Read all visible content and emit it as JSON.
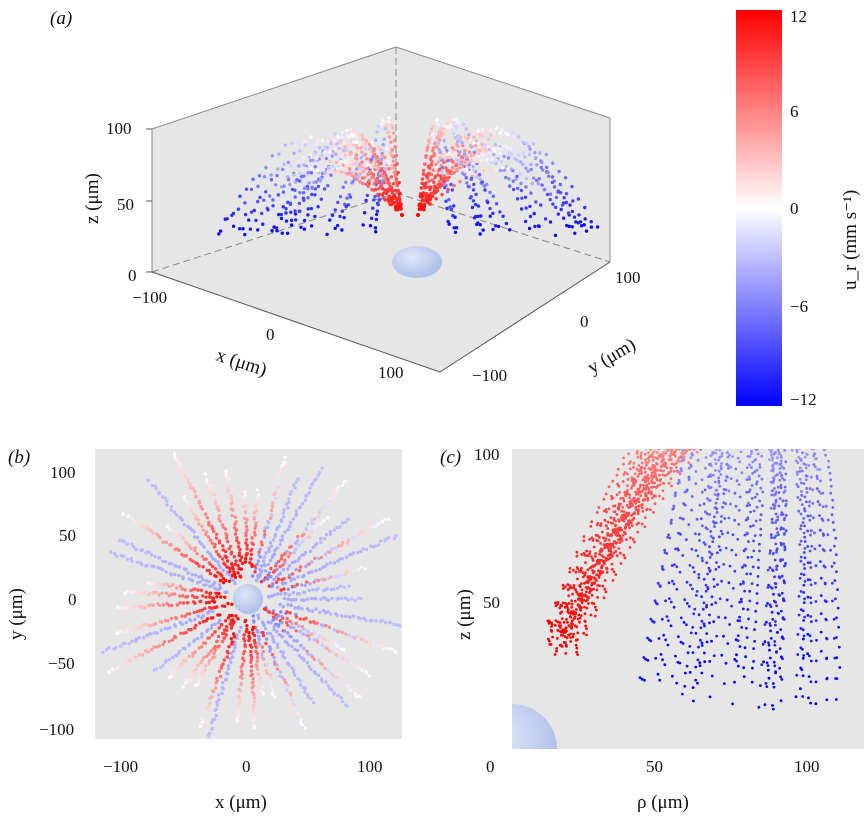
{
  "figure": {
    "panels": [
      {
        "id": "a",
        "label": "(a)"
      },
      {
        "id": "b",
        "label": "(b)"
      },
      {
        "id": "c",
        "label": "(c)"
      }
    ],
    "colorbar": {
      "label": "u_r (mm s⁻¹)",
      "ticks": [
        "12",
        "6",
        "0",
        "−6",
        "−12"
      ],
      "tick_values": [
        12,
        6,
        0,
        -6,
        -12
      ],
      "range": [
        -12,
        12
      ],
      "colormap": {
        "low": "#0000ff",
        "mid": "#ffffff",
        "high": "#ff0000"
      }
    },
    "colors": {
      "background_panel": "#e6e6e6",
      "sphere": "#b9c8ec"
    }
  },
  "chart_data": [
    {
      "panel": "a",
      "type": "scatter",
      "projection": "3d",
      "xlabel": "x (μm)",
      "ylabel": "y (μm)",
      "zlabel": "z (μm)",
      "x_ticks": [
        "−100",
        "0",
        "100"
      ],
      "y_ticks": [
        "−100",
        "0",
        "100"
      ],
      "z_ticks": [
        "0",
        "50",
        "100"
      ],
      "xlim": [
        -100,
        100
      ],
      "ylim": [
        -100,
        100
      ],
      "zlim": [
        0,
        100
      ],
      "color_variable": "u_r (mm s⁻¹)",
      "sphere": {
        "center": [
          0,
          0,
          0
        ],
        "radius": 12
      }
    },
    {
      "panel": "b",
      "type": "scatter",
      "xlabel": "x (μm)",
      "ylabel": "y (μm)",
      "x_ticks": [
        "−100",
        "0",
        "100"
      ],
      "y_ticks": [
        "100",
        "50",
        "0",
        "−50",
        "−100"
      ],
      "xlim": [
        -120,
        120
      ],
      "ylim": [
        -120,
        120
      ],
      "color_variable": "u_r (mm s⁻¹)",
      "sphere": {
        "center": [
          0,
          0
        ],
        "radius": 12
      }
    },
    {
      "panel": "c",
      "type": "scatter",
      "xlabel": "ρ (μm)",
      "ylabel": "z (μm)",
      "x_ticks": [
        "0",
        "50",
        "100"
      ],
      "y_ticks": [
        "100",
        "50"
      ],
      "xlim": [
        0,
        130
      ],
      "ylim": [
        0,
        100
      ],
      "color_variable": "u_r (mm s⁻¹)",
      "sphere": {
        "center": [
          0,
          0
        ],
        "radius": 15
      }
    }
  ]
}
